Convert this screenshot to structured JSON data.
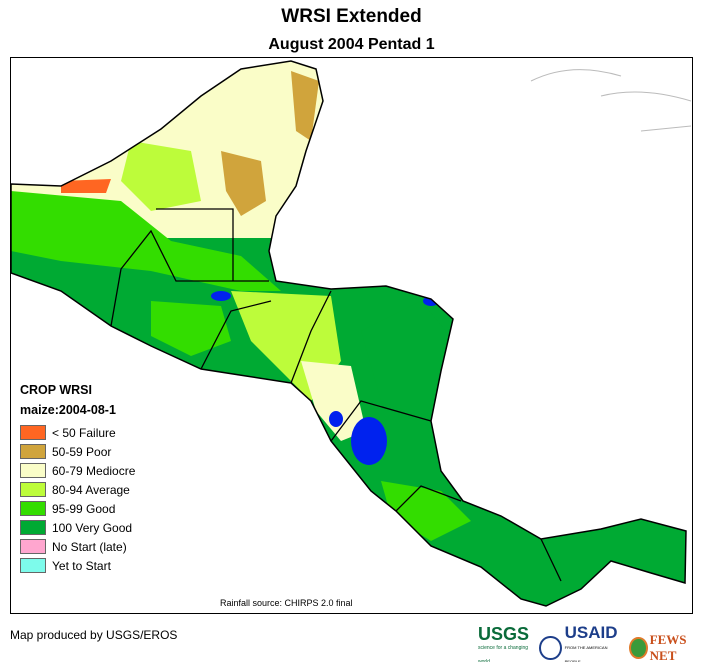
{
  "title": "WRSI Extended",
  "subtitle": "August 2004 Pentad 1",
  "legend": {
    "title": "CROP WRSI",
    "subtitle": "maize:2004-08-1",
    "items": [
      {
        "label": "< 50  Failure",
        "color": "#ff6622"
      },
      {
        "label": "50-59 Poor",
        "color": "#d0a43c"
      },
      {
        "label": "60-79 Mediocre",
        "color": "#fafdc8"
      },
      {
        "label": "80-94 Average",
        "color": "#bdfc3a"
      },
      {
        "label": "95-99 Good",
        "color": "#33dd00"
      },
      {
        "label": "100 Very Good",
        "color": "#00aa33"
      },
      {
        "label": "No Start (late)",
        "color": "#ffa6cf"
      },
      {
        "label": "Yet to Start",
        "color": "#7dfbeb"
      }
    ]
  },
  "source": "Rainfall source: CHIRPS 2.0 final",
  "footer": "Map produced by USGS/EROS",
  "logos": {
    "usgs": "USGS",
    "usgs_tag": "science for a changing world",
    "usaid": "USAID",
    "usaid_tag": "FROM THE AMERICAN PEOPLE",
    "fews": "FEWS NET"
  }
}
